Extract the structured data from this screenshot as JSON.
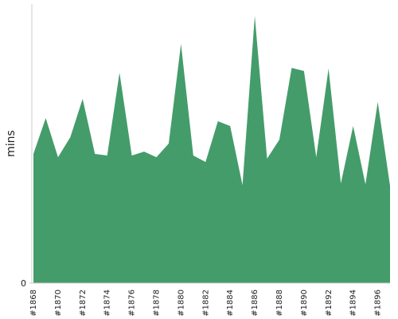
{
  "chart_data": {
    "type": "area",
    "y_label": "mins",
    "color": "#449c6b",
    "categories": [
      "#1868",
      null,
      "#1870",
      null,
      "#1872",
      null,
      "#1874",
      null,
      "#1876",
      null,
      "#1878",
      null,
      "#1880",
      null,
      "#1882",
      null,
      "#1884",
      null,
      "#1886",
      null,
      "#1888",
      null,
      "#1890",
      null,
      "#1892",
      null,
      "#1894",
      null,
      "#1896",
      null
    ],
    "values": [
      46.3,
      59.1,
      45.1,
      52.3,
      66,
      46.3,
      45.7,
      75.4,
      45.7,
      47.1,
      45.1,
      50,
      85.7,
      45.7,
      43.4,
      58,
      56.3,
      35.1,
      95.7,
      44.6,
      51.4,
      77.1,
      76,
      45.1,
      76.9,
      35.7,
      56.3,
      35.4,
      64.9,
      34.9
    ],
    "ylim": [
      0,
      100
    ],
    "yticks": [
      0
    ]
  }
}
